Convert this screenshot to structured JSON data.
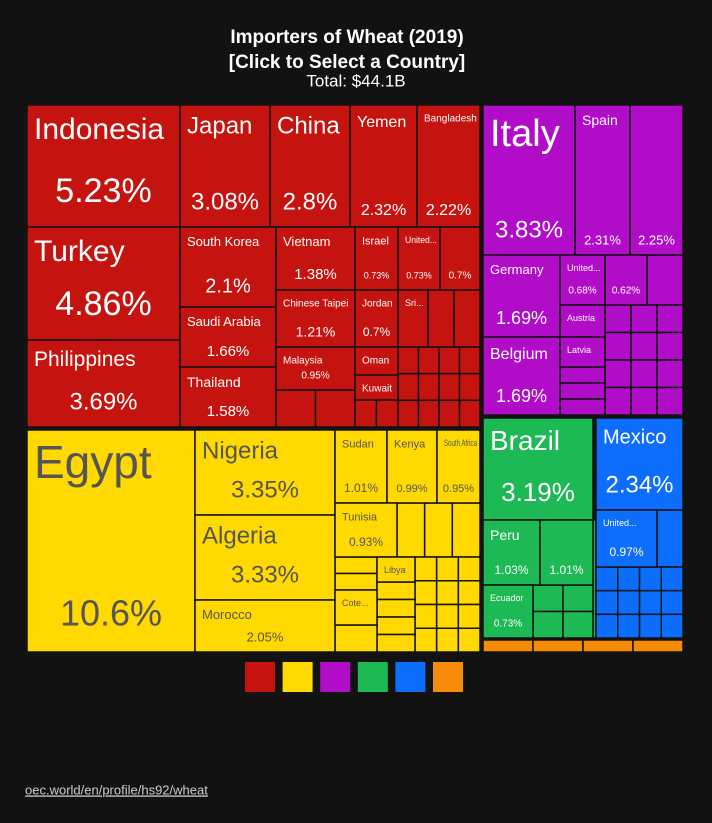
{
  "chart_data": {
    "type": "treemap",
    "title": "Importers of Wheat (2019)",
    "subtitle": "[Click to Select a Country]",
    "total": "Total: $44.1B",
    "regions": [
      {
        "color": "#c5140f"
      },
      {
        "color": "#ffd900"
      },
      {
        "color": "#b10dc9"
      },
      {
        "color": "#1db954"
      },
      {
        "color": "#0d6efd"
      },
      {
        "color": "#f68b08"
      }
    ],
    "items": [
      {
        "name": "Indonesia",
        "value": 5.23,
        "value_label": "5.23%",
        "region": 0
      },
      {
        "name": "Turkey",
        "value": 4.86,
        "value_label": "4.86%",
        "region": 0
      },
      {
        "name": "Philippines",
        "value": 3.69,
        "value_label": "3.69%",
        "region": 0
      },
      {
        "name": "Japan",
        "value": 3.08,
        "value_label": "3.08%",
        "region": 0
      },
      {
        "name": "China",
        "value": 2.8,
        "value_label": "2.8%",
        "region": 0
      },
      {
        "name": "Yemen",
        "value": 2.32,
        "value_label": "2.32%",
        "region": 0
      },
      {
        "name": "Bangladesh",
        "value": 2.22,
        "value_label": "2.22%",
        "region": 0
      },
      {
        "name": "South Korea",
        "value": 2.1,
        "value_label": "2.1%",
        "region": 0
      },
      {
        "name": "Saudi Arabia",
        "value": 1.66,
        "value_label": "1.66%",
        "region": 0
      },
      {
        "name": "Thailand",
        "value": 1.58,
        "value_label": "1.58%",
        "region": 0
      },
      {
        "name": "Vietnam",
        "value": 1.38,
        "value_label": "1.38%",
        "region": 0
      },
      {
        "name": "Chinese Taipei",
        "value": 1.21,
        "value_label": "1.21%",
        "region": 0
      },
      {
        "name": "Malaysia",
        "value": 0.95,
        "value_label": "0.95%",
        "region": 0
      },
      {
        "name": "Israel",
        "value": 0.73,
        "value_label": "0.73%",
        "region": 0
      },
      {
        "name": "United...",
        "value": 0.73,
        "value_label": "0.73%",
        "region": 0
      },
      {
        "name": null,
        "value": 0.7,
        "value_label": "0.7%",
        "region": 0
      },
      {
        "name": "Jordan",
        "value": 0.7,
        "value_label": "0.7%",
        "region": 0
      },
      {
        "name": "Sri...",
        "value": 0.5,
        "value_label": null,
        "region": 0
      },
      {
        "name": "Oman",
        "value": 0.45,
        "value_label": null,
        "region": 0
      },
      {
        "name": "Kuwait",
        "value": 0.4,
        "value_label": null,
        "region": 0
      },
      {
        "name": "Italy",
        "value": 3.83,
        "value_label": "3.83%",
        "region": 2
      },
      {
        "name": "Spain",
        "value": 2.31,
        "value_label": "2.31%",
        "region": 2
      },
      {
        "name": null,
        "value": 2.25,
        "value_label": "2.25%",
        "region": 2
      },
      {
        "name": "Germany",
        "value": 1.69,
        "value_label": "1.69%",
        "region": 2
      },
      {
        "name": "Belgium",
        "value": 1.69,
        "value_label": "1.69%",
        "region": 2
      },
      {
        "name": "United...",
        "value": 0.68,
        "value_label": "0.68%",
        "region": 2
      },
      {
        "name": null,
        "value": 0.62,
        "value_label": "0.62%",
        "region": 2
      },
      {
        "name": "Austria",
        "value": 0.4,
        "value_label": null,
        "region": 2
      },
      {
        "name": "Latvia",
        "value": 0.35,
        "value_label": null,
        "region": 2
      },
      {
        "name": "Egypt",
        "value": 10.6,
        "value_label": "10.6%",
        "region": 1
      },
      {
        "name": "Nigeria",
        "value": 3.35,
        "value_label": "3.35%",
        "region": 1
      },
      {
        "name": "Algeria",
        "value": 3.33,
        "value_label": "3.33%",
        "region": 1
      },
      {
        "name": "Morocco",
        "value": 2.05,
        "value_label": "2.05%",
        "region": 1
      },
      {
        "name": "Sudan",
        "value": 1.01,
        "value_label": "1.01%",
        "region": 1
      },
      {
        "name": "Kenya",
        "value": 0.99,
        "value_label": "0.99%",
        "region": 1
      },
      {
        "name": "South Africa",
        "value": 0.95,
        "value_label": "0.95%",
        "region": 1
      },
      {
        "name": "Tunisia",
        "value": 0.93,
        "value_label": "0.93%",
        "region": 1
      },
      {
        "name": "Libya",
        "value": 0.4,
        "value_label": null,
        "region": 1
      },
      {
        "name": "Cote...",
        "value": 0.35,
        "value_label": null,
        "region": 1
      },
      {
        "name": "Brazil",
        "value": 3.19,
        "value_label": "3.19%",
        "region": 3
      },
      {
        "name": "Peru",
        "value": 1.03,
        "value_label": "1.03%",
        "region": 3
      },
      {
        "name": null,
        "value": 1.01,
        "value_label": "1.01%",
        "region": 3
      },
      {
        "name": "Ecuador",
        "value": 0.73,
        "value_label": "0.73%",
        "region": 3
      },
      {
        "name": "Mexico",
        "value": 2.34,
        "value_label": "2.34%",
        "region": 4
      },
      {
        "name": "United...",
        "value": 0.97,
        "value_label": "0.97%",
        "region": 4
      }
    ],
    "source": "oec.world/en/profile/hs92/wheat"
  }
}
